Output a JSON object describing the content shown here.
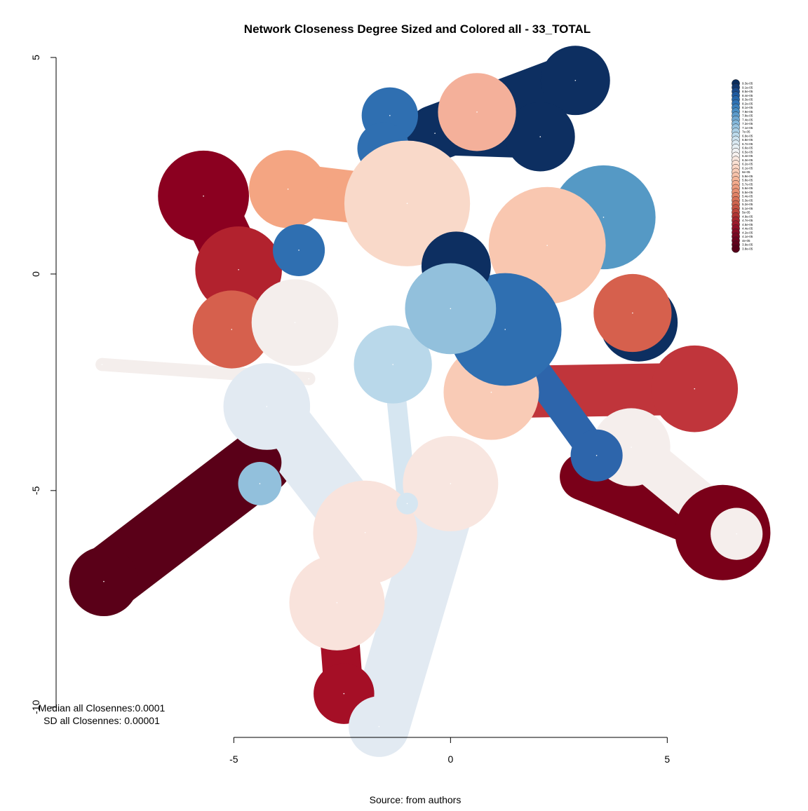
{
  "chart_data": {
    "type": "network",
    "title": "Network Closeness Degree Sized and Colored all - 33_TOTAL",
    "source": "Source: from authors",
    "annotations": [
      "Median all Closennes:0.0001",
      "SD all Closennes: 0.00001"
    ],
    "xlim": [
      -9.1,
      7.6
    ],
    "ylim": [
      -10.7,
      5
    ],
    "xticks": [
      -5,
      0,
      5
    ],
    "yticks": [
      5,
      0,
      -5,
      -10
    ],
    "nodes": [
      {
        "x": 2.88,
        "y": 4.47,
        "size": 0.8,
        "color": "#0d2f61"
      },
      {
        "x": -0.36,
        "y": 3.25,
        "size": 0.6,
        "color": "#0d2f61"
      },
      {
        "x": -8.0,
        "y": -7.1,
        "size": 0.8,
        "color": "#5a0018"
      },
      {
        "x": -4.4,
        "y": -4.35,
        "size": 0.5,
        "color": "#5a0018"
      },
      {
        "x": 6.28,
        "y": -5.97,
        "size": 1.1,
        "color": "#7a0019"
      },
      {
        "x": 3.07,
        "y": -4.68,
        "size": 0.5,
        "color": "#7a0019"
      },
      {
        "x": 4.17,
        "y": -4.0,
        "size": 0.9,
        "color": "#f5eeec"
      },
      {
        "x": 6.6,
        "y": -6.0,
        "size": 0.6,
        "color": "#f5eeec"
      },
      {
        "x": -8.04,
        "y": -2.09,
        "size": 0.15,
        "color": "#f4eeec"
      },
      {
        "x": -3.27,
        "y": -2.42,
        "size": 0.15,
        "color": "#f4eeec"
      },
      {
        "x": -2.46,
        "y": -9.69,
        "size": 0.7,
        "color": "#a50f26"
      },
      {
        "x": -1.65,
        "y": -10.45,
        "size": 0.7,
        "color": "#e2eaf2"
      },
      {
        "x": -5.7,
        "y": 1.8,
        "size": 1.05,
        "color": "#8b0020"
      },
      {
        "x": -4.89,
        "y": 0.1,
        "size": 1.0,
        "color": "#b2222e"
      },
      {
        "x": -5.05,
        "y": -1.28,
        "size": 0.9,
        "color": "#d6604d"
      },
      {
        "x": 5.63,
        "y": -2.65,
        "size": 1.0,
        "color": "#c0353b"
      },
      {
        "x": 3.53,
        "y": 1.31,
        "size": 1.2,
        "color": "#5599c5"
      },
      {
        "x": 2.07,
        "y": 3.17,
        "size": 0.8,
        "color": "#0d2f61"
      },
      {
        "x": -1.4,
        "y": 3.66,
        "size": 0.65,
        "color": "#2f6fb1"
      },
      {
        "x": -1.55,
        "y": 2.9,
        "size": 0.6,
        "color": "#2f6fb1"
      },
      {
        "x": 0.61,
        "y": 3.74,
        "size": 0.9,
        "color": "#f4b09a"
      },
      {
        "x": -3.75,
        "y": 1.96,
        "size": 0.9,
        "color": "#f4a582"
      },
      {
        "x": 4.34,
        "y": -1.12,
        "size": 0.9,
        "color": "#0d2f61"
      },
      {
        "x": 4.2,
        "y": -0.9,
        "size": 0.9,
        "color": "#d6604d"
      },
      {
        "x": 3.37,
        "y": -4.19,
        "size": 0.6,
        "color": "#2d65ab"
      },
      {
        "x": -4.24,
        "y": -3.06,
        "size": 1.0,
        "color": "#e2eaf2"
      },
      {
        "x": -3.59,
        "y": -1.12,
        "size": 1.0,
        "color": "#f4eeec"
      },
      {
        "x": -2.62,
        "y": -7.59,
        "size": 1.1,
        "color": "#f9e3dc"
      },
      {
        "x": -1.97,
        "y": -5.97,
        "size": 1.2,
        "color": "#f9e3dc"
      },
      {
        "x": 0,
        "y": -4.84,
        "size": 1.1,
        "color": "#f8e6e0"
      },
      {
        "x": -3.5,
        "y": 0.55,
        "size": 0.6,
        "color": "#2f6fb1"
      },
      {
        "x": -1.0,
        "y": 1.63,
        "size": 1.45,
        "color": "#f9d9c9"
      },
      {
        "x": 2.23,
        "y": 0.66,
        "size": 1.35,
        "color": "#f9c7b0"
      },
      {
        "x": 0.94,
        "y": -2.73,
        "size": 1.1,
        "color": "#f9cbb6"
      },
      {
        "x": -1.33,
        "y": -2.09,
        "size": 0.9,
        "color": "#b9d8ea"
      },
      {
        "x": 1.26,
        "y": -1.28,
        "size": 1.3,
        "color": "#2f6fb1"
      },
      {
        "x": 0.13,
        "y": 0.18,
        "size": 0.8,
        "color": "#0d2f61"
      },
      {
        "x": 0,
        "y": -0.8,
        "size": 1.05,
        "color": "#92c0dc"
      },
      {
        "x": -4.4,
        "y": -4.84,
        "size": 0.5,
        "color": "#92c0dc"
      },
      {
        "x": -1.0,
        "y": -5.3,
        "size": 0.25,
        "color": "#d6e6f1"
      }
    ],
    "edges": [
      {
        "from": 0,
        "to": 1,
        "width": 1.3,
        "color": "#0d2f61"
      },
      {
        "from": 2,
        "to": 3,
        "width": 1.5,
        "color": "#5a0018"
      },
      {
        "from": 4,
        "to": 5,
        "width": 1.1,
        "color": "#7a0019"
      },
      {
        "from": 6,
        "to": 7,
        "width": 1.0,
        "color": "#f5eeec"
      },
      {
        "from": 8,
        "to": 9,
        "width": 0.3,
        "color": "#f4eeec"
      },
      {
        "from": 10,
        "to": 27,
        "width": 0.9,
        "color": "#a50f26"
      },
      {
        "from": 11,
        "to": 29,
        "width": 1.4,
        "color": "#e2eaf2"
      },
      {
        "from": 12,
        "to": 13,
        "width": 1.3,
        "color": "#8b0020"
      },
      {
        "from": 16,
        "to": 32,
        "width": 1.2,
        "color": "#5599c5"
      },
      {
        "from": 15,
        "to": 33,
        "width": 1.2,
        "color": "#c0353b"
      },
      {
        "from": 39,
        "to": 34,
        "width": 0.45,
        "color": "#d6e6f1"
      },
      {
        "from": 17,
        "to": 1,
        "width": 1.0,
        "color": "#0d2f61"
      },
      {
        "from": 21,
        "to": 31,
        "width": 1.2,
        "color": "#f4a582"
      },
      {
        "from": 25,
        "to": 28,
        "width": 1.4,
        "color": "#e2eaf2"
      },
      {
        "from": 24,
        "to": 35,
        "width": 0.7,
        "color": "#2d65ab"
      }
    ],
    "legend": [
      {
        "label": "9.3e-05",
        "color": "#0b2d5c"
      },
      {
        "label": "9.1e-05",
        "color": "#12386e"
      },
      {
        "label": "8.5e-05",
        "color": "#1a4a8a"
      },
      {
        "label": "8.4e-05",
        "color": "#1f5aa0"
      },
      {
        "label": "8.3e-05",
        "color": "#2566aa"
      },
      {
        "label": "8.2e-05",
        "color": "#2f72b5"
      },
      {
        "label": "8.1e-05",
        "color": "#3b80bc"
      },
      {
        "label": "7.9e-05",
        "color": "#4a8ec4"
      },
      {
        "label": "7.8e-05",
        "color": "#5c9bcb"
      },
      {
        "label": "7.4e-05",
        "color": "#70a9d2"
      },
      {
        "label": "7.2e-05",
        "color": "#84b7da"
      },
      {
        "label": "7.1e-05",
        "color": "#98c4e0"
      },
      {
        "label": "7e-05",
        "color": "#abd0e6"
      },
      {
        "label": "6.9e-05",
        "color": "#bcdaeb"
      },
      {
        "label": "6.8e-05",
        "color": "#cde3ef"
      },
      {
        "label": "6.7e-05",
        "color": "#dae9f2"
      },
      {
        "label": "6.6e-05",
        "color": "#e6eff4"
      },
      {
        "label": "6.5e-05",
        "color": "#f0f2f4"
      },
      {
        "label": "6.4e-05",
        "color": "#f6f1ef"
      },
      {
        "label": "6.3e-05",
        "color": "#f8e8e0"
      },
      {
        "label": "6.2e-05",
        "color": "#f9e0d3"
      },
      {
        "label": "6.1e-05",
        "color": "#fad7c6"
      },
      {
        "label": "6e-05",
        "color": "#f9cdb8"
      },
      {
        "label": "5.9e-05",
        "color": "#f7c2aa"
      },
      {
        "label": "5.8e-05",
        "color": "#f5b79b"
      },
      {
        "label": "5.7e-05",
        "color": "#f3ab8d"
      },
      {
        "label": "5.6e-05",
        "color": "#ee9e80"
      },
      {
        "label": "5.5e-05",
        "color": "#e89073"
      },
      {
        "label": "5.4e-05",
        "color": "#e08266"
      },
      {
        "label": "5.3e-05",
        "color": "#d8735a"
      },
      {
        "label": "5.2e-05",
        "color": "#cf654f"
      },
      {
        "label": "5.1e-05",
        "color": "#c65545"
      },
      {
        "label": "5e-05",
        "color": "#bd463c"
      },
      {
        "label": "4.9e-05",
        "color": "#b23634"
      },
      {
        "label": "4.7e-05",
        "color": "#a7272f"
      },
      {
        "label": "4.5e-05",
        "color": "#9c1a2c"
      },
      {
        "label": "4.4e-05",
        "color": "#901028"
      },
      {
        "label": "4.2e-05",
        "color": "#850b25"
      },
      {
        "label": "4.1e-05",
        "color": "#790822"
      },
      {
        "label": "4e-05",
        "color": "#6d041f"
      },
      {
        "label": "3.9e-05",
        "color": "#61021c"
      },
      {
        "label": "3.8e-05",
        "color": "#560019"
      }
    ]
  }
}
